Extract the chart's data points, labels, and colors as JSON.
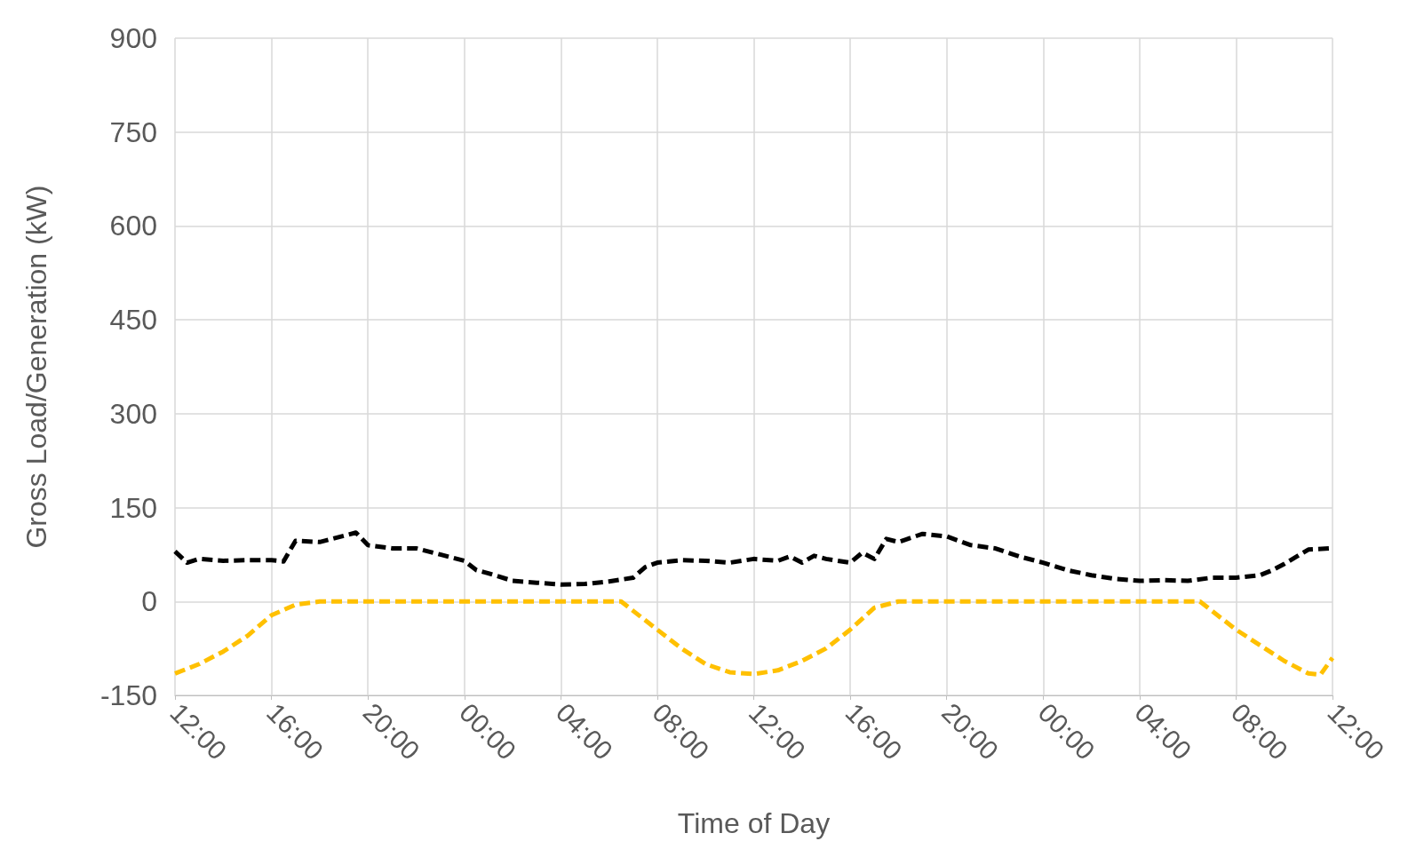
{
  "chart_data": {
    "type": "line",
    "xlabel": "Time of Day",
    "ylabel": "Gross Load/Generation (kW)",
    "xlim": [
      "--01-01T12:00",
      "--01-03T12:00"
    ],
    "xticks": [
      {
        "value": "--01-01T12:00",
        "label": "12:00"
      },
      {
        "value": "--01-01T16:00",
        "label": "16:00"
      },
      {
        "value": "--01-01T20:00",
        "label": "20:00"
      },
      {
        "value": "--01-02T00:00",
        "label": "00:00"
      },
      {
        "value": "--01-02T04:00",
        "label": "04:00"
      },
      {
        "value": "--01-02T08:00",
        "label": "08:00"
      },
      {
        "value": "--01-02T12:00",
        "label": "12:00"
      },
      {
        "value": "--01-02T16:00",
        "label": "16:00"
      },
      {
        "value": "--01-02T20:00",
        "label": "20:00"
      },
      {
        "value": "--01-03T00:00",
        "label": "00:00"
      },
      {
        "value": "--01-03T04:00",
        "label": "04:00"
      },
      {
        "value": "--01-03T08:00",
        "label": "08:00"
      },
      {
        "value": "--01-03T12:00",
        "label": "12:00"
      }
    ],
    "ylim": [
      -150,
      900
    ],
    "yticks": [
      -150,
      0,
      150,
      300,
      450,
      600,
      750,
      900
    ],
    "grid": true,
    "marker": "none",
    "line_style": "dashed",
    "series": [
      {
        "color": "#000000",
        "x": [
          "--01-01T12:00",
          "--01-01T12:30",
          "--01-01T13:00",
          "--01-01T14:00",
          "--01-01T15:00",
          "--01-01T16:00",
          "--01-01T16:30",
          "--01-01T17:00",
          "--01-01T18:00",
          "--01-01T19:00",
          "--01-01T19:30",
          "--01-01T20:00",
          "--01-01T21:00",
          "--01-01T22:00",
          "--01-01T23:00",
          "--01-02T00:00",
          "--01-02T00:30",
          "--01-02T01:00",
          "--01-02T02:00",
          "--01-02T03:00",
          "--01-02T04:00",
          "--01-02T05:00",
          "--01-02T06:00",
          "--01-02T07:00",
          "--01-02T07:30",
          "--01-02T08:00",
          "--01-02T09:00",
          "--01-02T10:00",
          "--01-02T11:00",
          "--01-02T12:00",
          "--01-02T13:00",
          "--01-02T13:30",
          "--01-02T14:00",
          "--01-02T14:30",
          "--01-02T15:00",
          "--01-02T16:00",
          "--01-02T16:30",
          "--01-02T17:00",
          "--01-02T17:30",
          "--01-02T18:00",
          "--01-02T19:00",
          "--01-02T20:00",
          "--01-02T21:00",
          "--01-02T22:00",
          "--01-02T23:00",
          "--01-03T00:00",
          "--01-03T01:00",
          "--01-03T02:00",
          "--01-03T03:00",
          "--01-03T04:00",
          "--01-03T05:00",
          "--01-03T06:00",
          "--01-03T07:00",
          "--01-03T08:00",
          "--01-03T09:00",
          "--01-03T09:30",
          "--01-03T10:00",
          "--01-03T11:00",
          "--01-03T12:00"
        ],
        "values": [
          80,
          62,
          68,
          65,
          66,
          66,
          64,
          97,
          95,
          105,
          110,
          90,
          85,
          85,
          75,
          65,
          50,
          45,
          33,
          30,
          27,
          28,
          32,
          38,
          55,
          62,
          66,
          65,
          62,
          68,
          65,
          72,
          62,
          73,
          68,
          62,
          78,
          68,
          100,
          95,
          108,
          104,
          90,
          85,
          72,
          62,
          50,
          42,
          36,
          33,
          34,
          33,
          38,
          38,
          42,
          50,
          60,
          83,
          85
        ]
      },
      {
        "color": "#ffc000",
        "x": [
          "--01-01T12:00",
          "--01-01T13:00",
          "--01-01T14:00",
          "--01-01T15:00",
          "--01-01T16:00",
          "--01-01T17:00",
          "--01-01T18:00",
          "--01-02T06:30",
          "--01-02T07:00",
          "--01-02T08:00",
          "--01-02T09:00",
          "--01-02T10:00",
          "--01-02T11:00",
          "--01-02T12:00",
          "--01-02T13:00",
          "--01-02T14:00",
          "--01-02T15:00",
          "--01-02T16:00",
          "--01-02T17:00",
          "--01-02T18:00",
          "--01-03T06:30",
          "--01-03T07:00",
          "--01-03T08:00",
          "--01-03T09:00",
          "--01-03T10:00",
          "--01-03T11:00",
          "--01-03T11:30",
          "--01-03T12:00"
        ],
        "values": [
          -115,
          -100,
          -80,
          -55,
          -22,
          -5,
          0,
          0,
          -15,
          -45,
          -75,
          -100,
          -113,
          -116,
          -110,
          -95,
          -75,
          -45,
          -10,
          0,
          0,
          -15,
          -45,
          -70,
          -95,
          -115,
          -117,
          -90
        ]
      }
    ]
  }
}
